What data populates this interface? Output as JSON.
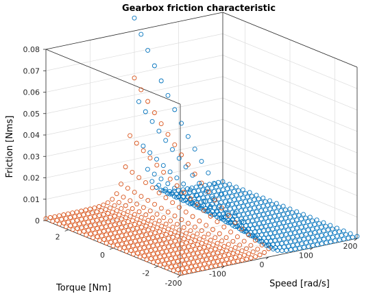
{
  "chart_data": {
    "type": "scatter3d",
    "title": "Gearbox friction characteristic",
    "xlabel": "Speed [rad/s]",
    "ylabel": "Torque [Nm]",
    "zlabel": "Friction [Nms]",
    "xlim": [
      -200,
      200
    ],
    "ylim": [
      -3,
      3
    ],
    "zlim": [
      0,
      0.08
    ],
    "xticks": [
      "-200",
      "-100",
      "0",
      "100",
      "200"
    ],
    "xtick_values": [
      -200,
      -100,
      0,
      100,
      200
    ],
    "yticks": [
      "-2",
      "0",
      "2"
    ],
    "ytick_values": [
      -2,
      0,
      2
    ],
    "zticks": [
      "0",
      "0.01",
      "0.02",
      "0.03",
      "0.04",
      "0.05",
      "0.06",
      "0.07",
      "0.08"
    ],
    "ztick_values": [
      0,
      0.01,
      0.02,
      0.03,
      0.04,
      0.05,
      0.06,
      0.07,
      0.08
    ],
    "grid": true,
    "marker": "circle-open",
    "series": [
      {
        "color": "#0072BD",
        "speed_range": [
          0,
          200
        ],
        "torque_range": [
          -3,
          3
        ],
        "speed_samples": 21,
        "torque_samples": 21,
        "friction_at_zero_speed_max": 0.085,
        "friction_plateau": 0.001
      },
      {
        "color": "#D95319",
        "speed_range": [
          -200,
          0
        ],
        "torque_range": [
          -3,
          3
        ],
        "speed_samples": 21,
        "torque_samples": 21,
        "friction_at_zero_speed_max": 0.057,
        "friction_plateau": 0.001
      }
    ]
  }
}
